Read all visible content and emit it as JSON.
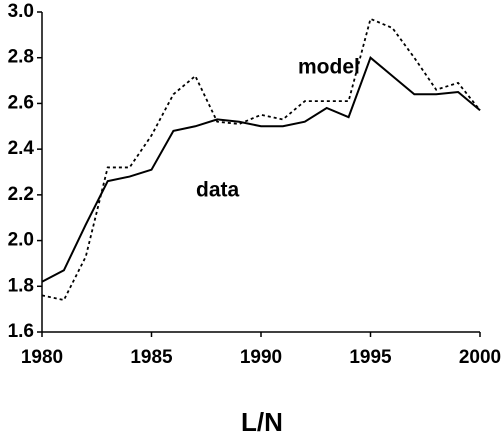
{
  "chart_data": {
    "type": "line",
    "x_label": "L/N",
    "x": [
      1980,
      1981,
      1982,
      1983,
      1984,
      1985,
      1986,
      1987,
      1988,
      1989,
      1990,
      1991,
      1992,
      1993,
      1994,
      1995,
      1996,
      1997,
      1998,
      1999,
      2000
    ],
    "series": [
      {
        "name": "data",
        "color": "#000000",
        "dash": "solid",
        "values": [
          1.82,
          1.87,
          2.07,
          2.26,
          2.28,
          2.31,
          2.48,
          2.5,
          2.53,
          2.52,
          2.5,
          2.5,
          2.52,
          2.58,
          2.54,
          2.8,
          2.72,
          2.64,
          2.64,
          2.65,
          2.57
        ]
      },
      {
        "name": "model",
        "color": "#000000",
        "dash": "dotted",
        "values": [
          1.76,
          1.74,
          1.93,
          2.32,
          2.32,
          2.46,
          2.64,
          2.72,
          2.52,
          2.51,
          2.55,
          2.53,
          2.61,
          2.61,
          2.61,
          2.97,
          2.93,
          2.8,
          2.66,
          2.69,
          2.57
        ]
      }
    ],
    "xlim": [
      1980,
      2000
    ],
    "xticks": [
      1980,
      1985,
      1990,
      1995,
      2000
    ],
    "ylim": [
      1.6,
      3.0
    ],
    "yticks": [
      1.6,
      1.8,
      {
        "value": 2.0,
        "label": "2.0"
      },
      2.2,
      2.4,
      2.6,
      2.8,
      {
        "value": 3.0,
        "label": "3.0"
      }
    ],
    "grid": false
  }
}
